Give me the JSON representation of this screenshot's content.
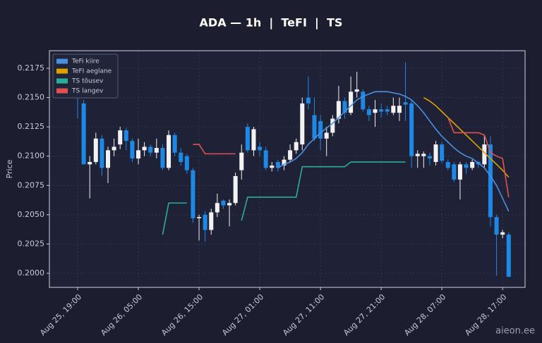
{
  "chart_data": {
    "type": "candlestick",
    "title": "ADA — 1h  |  TeFI  |  TS",
    "y_label": "Price",
    "watermark": "aieon.ee",
    "x": [
      0,
      1,
      2,
      3,
      4,
      5,
      6,
      7,
      8,
      9,
      10,
      11,
      12,
      13,
      14,
      15,
      16,
      17,
      18,
      19,
      20,
      21,
      22,
      23,
      24,
      25,
      26,
      27,
      28,
      29,
      30,
      31,
      32,
      33,
      34,
      35,
      36,
      37,
      38,
      39,
      40,
      41,
      42,
      43,
      44,
      45,
      46,
      47,
      48,
      49,
      50,
      51,
      52,
      53,
      54,
      55,
      56,
      57,
      58,
      59,
      60,
      61,
      62,
      63,
      64,
      65,
      66,
      67,
      68,
      69,
      70,
      71
    ],
    "open": [
      0.2155,
      0.2145,
      0.2093,
      0.2095,
      0.2115,
      0.209,
      0.2105,
      0.211,
      0.2122,
      0.2113,
      0.2098,
      0.2105,
      0.2108,
      0.2103,
      0.2107,
      0.209,
      0.2118,
      0.2103,
      0.21,
      0.2088,
      0.2047,
      0.205,
      0.2037,
      0.2052,
      0.2062,
      0.2058,
      0.206,
      0.2088,
      0.2125,
      0.2105,
      0.2108,
      0.2105,
      0.209,
      0.2095,
      0.2092,
      0.2097,
      0.2105,
      0.211,
      0.215,
      0.2135,
      0.213,
      0.2115,
      0.212,
      0.2132,
      0.2147,
      0.2137,
      0.2155,
      0.2155,
      0.214,
      0.2137,
      0.214,
      0.214,
      0.2137,
      0.2137,
      0.2146,
      0.2145,
      0.21,
      0.21,
      0.21,
      0.2095,
      0.211,
      0.2095,
      0.2093,
      0.208,
      0.2093,
      0.209,
      0.2095,
      0.2093,
      0.211,
      0.2048,
      0.2033,
      0.2033
    ],
    "high": [
      0.216,
      0.2148,
      0.21,
      0.212,
      0.2118,
      0.2108,
      0.2115,
      0.2125,
      0.2124,
      0.2115,
      0.2115,
      0.2112,
      0.211,
      0.2115,
      0.211,
      0.2122,
      0.212,
      0.2107,
      0.2102,
      0.209,
      0.205,
      0.2053,
      0.2055,
      0.2068,
      0.2063,
      0.2063,
      0.2086,
      0.211,
      0.2128,
      0.2125,
      0.2112,
      0.2108,
      0.2095,
      0.2097,
      0.21,
      0.211,
      0.2115,
      0.215,
      0.2168,
      0.215,
      0.2135,
      0.2125,
      0.2135,
      0.216,
      0.215,
      0.2168,
      0.2172,
      0.2157,
      0.2143,
      0.2148,
      0.2145,
      0.2143,
      0.215,
      0.215,
      0.218,
      0.2148,
      0.2105,
      0.2104,
      0.2103,
      0.2113,
      0.2112,
      0.2097,
      0.2095,
      0.2095,
      0.2095,
      0.2097,
      0.2096,
      0.2118,
      0.2117,
      0.205,
      0.2037,
      0.2035
    ],
    "low": [
      0.2132,
      0.2093,
      0.2064,
      0.2093,
      0.2083,
      0.2077,
      0.21,
      0.2106,
      0.2105,
      0.2095,
      0.2093,
      0.21,
      0.21,
      0.2098,
      0.2088,
      0.2088,
      0.21,
      0.2092,
      0.2085,
      0.2043,
      0.2028,
      0.2027,
      0.2033,
      0.2048,
      0.2055,
      0.204,
      0.2058,
      0.208,
      0.2103,
      0.21,
      0.21,
      0.2088,
      0.2087,
      0.2087,
      0.2088,
      0.2095,
      0.2102,
      0.2105,
      0.214,
      0.2113,
      0.2105,
      0.21,
      0.2117,
      0.2128,
      0.2132,
      0.2135,
      0.215,
      0.2138,
      0.213,
      0.2125,
      0.2133,
      0.2135,
      0.2135,
      0.213,
      0.213,
      0.209,
      0.209,
      0.209,
      0.2092,
      0.2092,
      0.2094,
      0.2088,
      0.2078,
      0.2063,
      0.2085,
      0.2088,
      0.209,
      0.209,
      0.204,
      0.1998,
      0.203,
      0.1997
    ],
    "close": [
      0.215,
      0.2093,
      0.2095,
      0.2115,
      0.209,
      0.2105,
      0.2108,
      0.2122,
      0.2113,
      0.2098,
      0.2105,
      0.2108,
      0.2103,
      0.2107,
      0.209,
      0.2118,
      0.2103,
      0.2095,
      0.2088,
      0.2047,
      0.2048,
      0.2037,
      0.2052,
      0.206,
      0.2058,
      0.206,
      0.2083,
      0.2103,
      0.2105,
      0.2123,
      0.2105,
      0.209,
      0.2092,
      0.209,
      0.2097,
      0.2105,
      0.2112,
      0.2145,
      0.2145,
      0.2115,
      0.2115,
      0.212,
      0.2132,
      0.2147,
      0.2137,
      0.2155,
      0.2157,
      0.214,
      0.2135,
      0.214,
      0.2138,
      0.2138,
      0.2143,
      0.2143,
      0.2144,
      0.21,
      0.2102,
      0.2102,
      0.2098,
      0.211,
      0.2096,
      0.209,
      0.208,
      0.2093,
      0.209,
      0.2095,
      0.2093,
      0.211,
      0.2048,
      0.2033,
      0.2035,
      0.1997
    ],
    "up_color": "#f2f2f2",
    "down_color": "#1e88e5",
    "series": [
      {
        "name": "TeFi kiire",
        "color": "#4a90e2",
        "values": [
          null,
          null,
          null,
          null,
          null,
          null,
          null,
          null,
          null,
          null,
          null,
          null,
          null,
          null,
          null,
          null,
          null,
          null,
          null,
          null,
          null,
          null,
          null,
          null,
          null,
          null,
          null,
          null,
          null,
          null,
          null,
          null,
          null,
          0.209,
          0.2093,
          0.2095,
          0.2098,
          0.2103,
          0.211,
          0.2115,
          0.212,
          0.2124,
          0.2128,
          0.2133,
          0.2138,
          0.2143,
          0.2148,
          0.2151,
          0.2153,
          0.2155,
          0.2155,
          0.2155,
          0.2154,
          0.2153,
          0.2151,
          0.2148,
          0.2143,
          0.2137,
          0.213,
          0.2123,
          0.2117,
          0.2112,
          0.2107,
          0.2103,
          0.21,
          0.2098,
          0.2094,
          0.209,
          0.2083,
          0.2075,
          0.2064,
          0.2053
        ]
      },
      {
        "name": "TeFI aeglane",
        "color": "#e0a100",
        "values": [
          null,
          null,
          null,
          null,
          null,
          null,
          null,
          null,
          null,
          null,
          null,
          null,
          null,
          null,
          null,
          null,
          null,
          null,
          null,
          null,
          null,
          null,
          null,
          null,
          null,
          null,
          null,
          null,
          null,
          null,
          null,
          null,
          null,
          null,
          null,
          null,
          null,
          null,
          null,
          null,
          null,
          null,
          null,
          null,
          null,
          null,
          null,
          null,
          null,
          null,
          null,
          null,
          null,
          null,
          null,
          null,
          null,
          0.215,
          0.2147,
          0.2143,
          0.2138,
          0.2133,
          0.2128,
          0.2123,
          0.2118,
          0.2113,
          0.2108,
          0.2103,
          0.2098,
          0.2093,
          0.2088,
          0.2082
        ]
      },
      {
        "name": "TS tõusev",
        "color": "#2bae98",
        "values": [
          null,
          null,
          null,
          null,
          null,
          null,
          null,
          null,
          null,
          null,
          null,
          null,
          null,
          null,
          0.2033,
          0.206,
          0.206,
          0.206,
          0.206,
          null,
          null,
          null,
          null,
          null,
          null,
          null,
          null,
          0.2045,
          0.2065,
          0.2065,
          0.2065,
          0.2065,
          0.2065,
          0.2065,
          0.2065,
          0.2065,
          0.2065,
          0.2091,
          0.2091,
          0.2091,
          0.2091,
          0.2091,
          0.2091,
          0.2091,
          0.2091,
          0.2095,
          0.2095,
          0.2095,
          0.2095,
          0.2095,
          0.2095,
          0.2095,
          0.2095,
          0.2095,
          0.2095,
          null,
          null,
          null,
          null,
          null,
          null,
          null,
          null,
          null,
          null,
          null,
          null,
          null,
          null,
          null,
          null,
          null
        ]
      },
      {
        "name": "TS langev",
        "color": "#e05252",
        "values": [
          null,
          null,
          null,
          null,
          null,
          null,
          null,
          null,
          null,
          null,
          null,
          null,
          null,
          null,
          null,
          null,
          null,
          null,
          null,
          0.211,
          0.211,
          0.2102,
          0.2102,
          0.2102,
          0.2102,
          0.2102,
          0.2102,
          null,
          null,
          null,
          null,
          null,
          null,
          null,
          null,
          null,
          null,
          null,
          null,
          null,
          null,
          null,
          null,
          null,
          null,
          null,
          null,
          null,
          null,
          null,
          null,
          null,
          null,
          null,
          null,
          null,
          null,
          null,
          null,
          null,
          null,
          0.2133,
          0.212,
          0.212,
          0.212,
          0.212,
          0.212,
          0.2118,
          0.2103,
          0.21,
          0.2098,
          0.2065
        ]
      }
    ],
    "xlim": [
      -4.65,
      73.7
    ],
    "xticks": [
      {
        "value": 0,
        "label": "Aug 25, 19:00"
      },
      {
        "value": 10,
        "label": "Aug 26, 05:00"
      },
      {
        "value": 20,
        "label": "Aug 26, 15:00"
      },
      {
        "value": 30,
        "label": "Aug 27, 01:00"
      },
      {
        "value": 40,
        "label": "Aug 27, 11:00"
      },
      {
        "value": 50,
        "label": "Aug 27, 21:00"
      },
      {
        "value": 60,
        "label": "Aug 28, 07:00"
      },
      {
        "value": 70,
        "label": "Aug 28, 17:00"
      }
    ],
    "ylim": [
      0.1988,
      0.219
    ],
    "yticks": [
      {
        "value": 0.2,
        "label": "0.2000"
      },
      {
        "value": 0.2025,
        "label": "0.2025"
      },
      {
        "value": 0.205,
        "label": "0.2050"
      },
      {
        "value": 0.2075,
        "label": "0.2075"
      },
      {
        "value": 0.21,
        "label": "0.2100"
      },
      {
        "value": 0.2125,
        "label": "0.2125"
      },
      {
        "value": 0.215,
        "label": "0.2150"
      },
      {
        "value": 0.2175,
        "label": "0.2175"
      }
    ],
    "grid": true,
    "legend": "upper left"
  }
}
